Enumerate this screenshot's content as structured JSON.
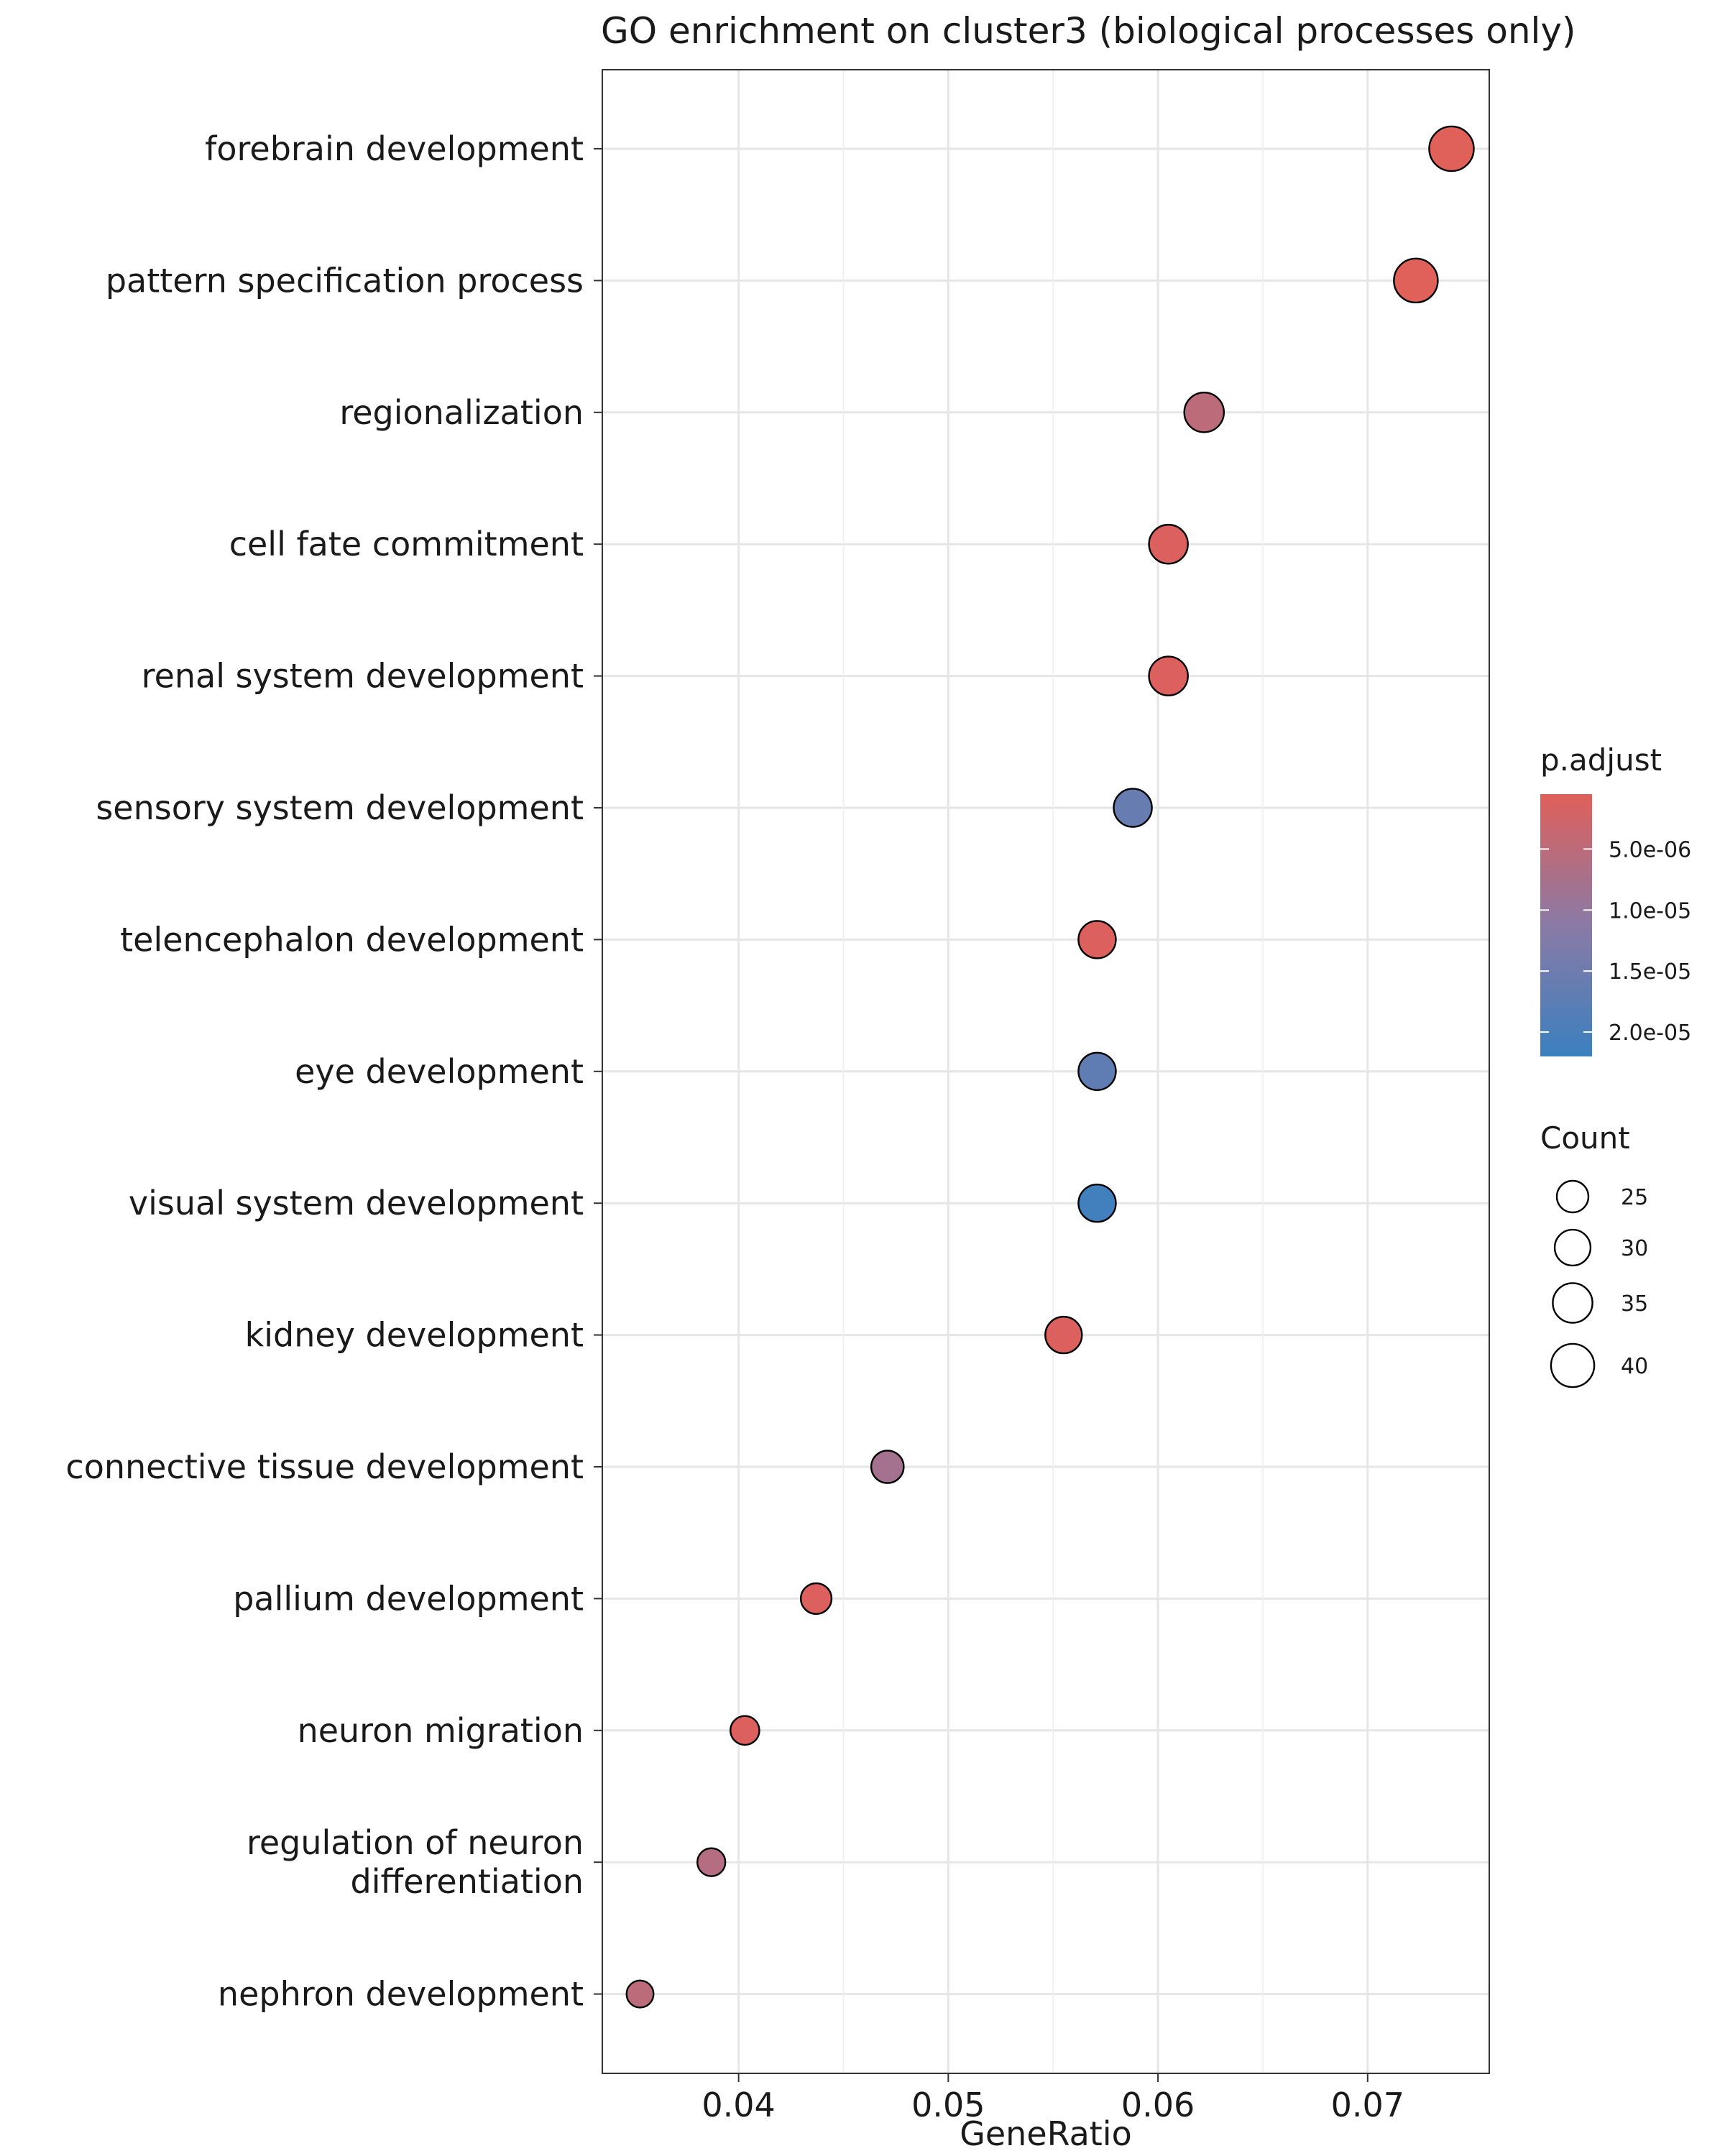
{
  "chart_data": {
    "type": "scatter",
    "title": "GO enrichment on cluster3 (biological processes only)",
    "xlabel": "GeneRatio",
    "ylabel": "",
    "xlim": [
      0.0335,
      0.0758
    ],
    "xticks": [
      0.04,
      0.05,
      0.06,
      0.07
    ],
    "xtick_labels": [
      "0.04",
      "0.05",
      "0.06",
      "0.07"
    ],
    "grid": true,
    "points": [
      {
        "term": [
          "forebrain development"
        ],
        "gene_ratio": 0.074,
        "count": 42,
        "p_adjust": 5e-07
      },
      {
        "term": [
          "pattern specification process"
        ],
        "gene_ratio": 0.0723,
        "count": 41,
        "p_adjust": 5e-07
      },
      {
        "term": [
          "regionalization"
        ],
        "gene_ratio": 0.0622,
        "count": 35,
        "p_adjust": 5e-06
      },
      {
        "term": [
          "cell fate commitment"
        ],
        "gene_ratio": 0.0605,
        "count": 34,
        "p_adjust": 1e-06
      },
      {
        "term": [
          "renal system development"
        ],
        "gene_ratio": 0.0605,
        "count": 34,
        "p_adjust": 1e-06
      },
      {
        "term": [
          "sensory system development"
        ],
        "gene_ratio": 0.0588,
        "count": 33,
        "p_adjust": 1.6e-05
      },
      {
        "term": [
          "telencephalon development"
        ],
        "gene_ratio": 0.0571,
        "count": 32,
        "p_adjust": 1e-06
      },
      {
        "term": [
          "eye development"
        ],
        "gene_ratio": 0.0571,
        "count": 32,
        "p_adjust": 1.7e-05
      },
      {
        "term": [
          "visual system development"
        ],
        "gene_ratio": 0.0571,
        "count": 32,
        "p_adjust": 2.1e-05
      },
      {
        "term": [
          "kidney development"
        ],
        "gene_ratio": 0.0555,
        "count": 31,
        "p_adjust": 1e-06
      },
      {
        "term": [
          "connective tissue development"
        ],
        "gene_ratio": 0.0471,
        "count": 26,
        "p_adjust": 8e-06
      },
      {
        "term": [
          "pallium development"
        ],
        "gene_ratio": 0.0437,
        "count": 24,
        "p_adjust": 1e-06
      },
      {
        "term": [
          "neuron migration"
        ],
        "gene_ratio": 0.0403,
        "count": 22,
        "p_adjust": 1e-06
      },
      {
        "term": [
          "regulation of neuron",
          "differentiation"
        ],
        "gene_ratio": 0.0387,
        "count": 21,
        "p_adjust": 6e-06
      },
      {
        "term": [
          "nephron development"
        ],
        "gene_ratio": 0.0353,
        "count": 20,
        "p_adjust": 5e-06
      }
    ],
    "color_legend": {
      "title": "p.adjust",
      "range": [
        5e-07,
        2.2e-05
      ],
      "low_color": "#e0605a",
      "mid_color": "#8a7aa6",
      "high_color": "#3b80bf",
      "ticks": [
        5e-06,
        1e-05,
        1.5e-05,
        2e-05
      ],
      "tick_labels": [
        "5.0e-06",
        "1.0e-05",
        "1.5e-05",
        "2.0e-05"
      ]
    },
    "size_legend": {
      "title": "Count",
      "values": [
        25,
        30,
        35,
        40
      ],
      "labels": [
        "25",
        "30",
        "35",
        "40"
      ]
    }
  }
}
